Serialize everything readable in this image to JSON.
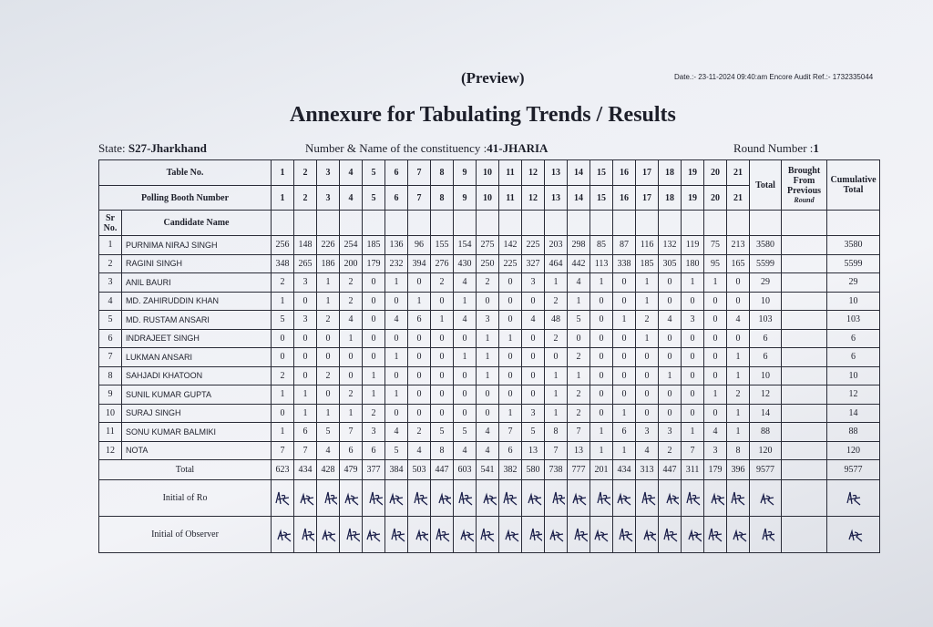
{
  "header": {
    "preview": "(Preview)",
    "date_ref": "Date.:- 23-11-2024 09:40:am Encore Audit Ref.:- 1732335044",
    "title": "Annexure for Tabulating Trends / Results",
    "state_label": "State:",
    "state": "S27-Jharkhand",
    "constituency_label": "Number & Name of the constituency :",
    "constituency": "41-JHARIA",
    "round_label": "Round Number :",
    "round": "1"
  },
  "table": {
    "table_no_label": "Table No.",
    "table_numbers": [
      1,
      2,
      3,
      4,
      5,
      6,
      7,
      8,
      9,
      10,
      11,
      12,
      13,
      14,
      15,
      16,
      17,
      18,
      19,
      20,
      21
    ],
    "booth_label": "Polling Booth Number",
    "booth_numbers": [
      1,
      2,
      3,
      4,
      5,
      6,
      7,
      8,
      9,
      10,
      11,
      12,
      13,
      14,
      15,
      16,
      17,
      18,
      19,
      20,
      21
    ],
    "total_header": "Total",
    "brought_header": "Brought From Previous",
    "brought_subheader": "Round",
    "cumulative_header": "Cumulative Total",
    "sr_header": "Sr No.",
    "name_header": "Candidate Name",
    "rows": [
      {
        "sr": 1,
        "name": "PURNIMA NIRAJ SINGH",
        "votes": [
          256,
          148,
          226,
          254,
          185,
          136,
          96,
          155,
          154,
          275,
          142,
          225,
          203,
          298,
          85,
          87,
          116,
          132,
          119,
          75,
          213
        ],
        "total": 3580,
        "cumulative": 3580
      },
      {
        "sr": 2,
        "name": "RAGINI SINGH",
        "votes": [
          348,
          265,
          186,
          200,
          179,
          232,
          394,
          276,
          430,
          250,
          225,
          327,
          464,
          442,
          113,
          338,
          185,
          305,
          180,
          95,
          165
        ],
        "total": 5599,
        "cumulative": 5599
      },
      {
        "sr": 3,
        "name": "ANIL BAURI",
        "votes": [
          2,
          3,
          1,
          2,
          0,
          1,
          0,
          2,
          4,
          2,
          0,
          3,
          1,
          4,
          1,
          0,
          1,
          0,
          1,
          1,
          0
        ],
        "total": 29,
        "cumulative": 29
      },
      {
        "sr": 4,
        "name": "MD. ZAHIRUDDIN KHAN",
        "votes": [
          1,
          0,
          1,
          2,
          0,
          0,
          1,
          0,
          1,
          0,
          0,
          0,
          2,
          1,
          0,
          0,
          1,
          0,
          0,
          0,
          0
        ],
        "total": 10,
        "cumulative": 10
      },
      {
        "sr": 5,
        "name": "MD. RUSTAM ANSARI",
        "votes": [
          5,
          3,
          2,
          4,
          0,
          4,
          6,
          1,
          4,
          3,
          0,
          4,
          48,
          5,
          0,
          1,
          2,
          4,
          3,
          0,
          4
        ],
        "total": 103,
        "cumulative": 103
      },
      {
        "sr": 6,
        "name": "INDRAJEET SINGH",
        "votes": [
          0,
          0,
          0,
          1,
          0,
          0,
          0,
          0,
          0,
          1,
          1,
          0,
          2,
          0,
          0,
          0,
          1,
          0,
          0,
          0,
          0
        ],
        "total": 6,
        "cumulative": 6
      },
      {
        "sr": 7,
        "name": "LUKMAN ANSARI",
        "votes": [
          0,
          0,
          0,
          0,
          0,
          1,
          0,
          0,
          1,
          1,
          0,
          0,
          0,
          2,
          0,
          0,
          0,
          0,
          0,
          0,
          1
        ],
        "total": 6,
        "cumulative": 6
      },
      {
        "sr": 8,
        "name": "SAHJADI KHATOON",
        "votes": [
          2,
          0,
          2,
          0,
          1,
          0,
          0,
          0,
          0,
          1,
          0,
          0,
          1,
          1,
          0,
          0,
          0,
          1,
          0,
          0,
          1
        ],
        "total": 10,
        "cumulative": 10
      },
      {
        "sr": 9,
        "name": "SUNIL KUMAR GUPTA",
        "votes": [
          1,
          1,
          0,
          2,
          1,
          1,
          0,
          0,
          0,
          0,
          0,
          0,
          1,
          2,
          0,
          0,
          0,
          0,
          0,
          1,
          2
        ],
        "total": 12,
        "cumulative": 12
      },
      {
        "sr": 10,
        "name": "SURAJ SINGH",
        "votes": [
          0,
          1,
          1,
          1,
          2,
          0,
          0,
          0,
          0,
          0,
          1,
          3,
          1,
          2,
          0,
          1,
          0,
          0,
          0,
          0,
          1
        ],
        "total": 14,
        "cumulative": 14
      },
      {
        "sr": 11,
        "name": "SONU KUMAR BALMIKI",
        "votes": [
          1,
          6,
          5,
          7,
          3,
          4,
          2,
          5,
          5,
          4,
          7,
          5,
          8,
          7,
          1,
          6,
          3,
          3,
          1,
          4,
          1
        ],
        "total": 88,
        "cumulative": 88
      },
      {
        "sr": 12,
        "name": "NOTA",
        "votes": [
          7,
          7,
          4,
          6,
          6,
          5,
          4,
          8,
          4,
          4,
          6,
          13,
          7,
          13,
          1,
          1,
          4,
          2,
          7,
          3,
          8
        ],
        "total": 120,
        "cumulative": 120
      }
    ],
    "total_label": "Total",
    "column_totals": [
      623,
      434,
      428,
      479,
      377,
      384,
      503,
      447,
      603,
      541,
      382,
      580,
      738,
      777,
      201,
      434,
      313,
      447,
      311,
      179,
      396
    ],
    "grand_total": 9577,
    "cumulative_total": 9577,
    "ro_label": "Initial of Ro",
    "observer_label": "Initial of Observer"
  }
}
